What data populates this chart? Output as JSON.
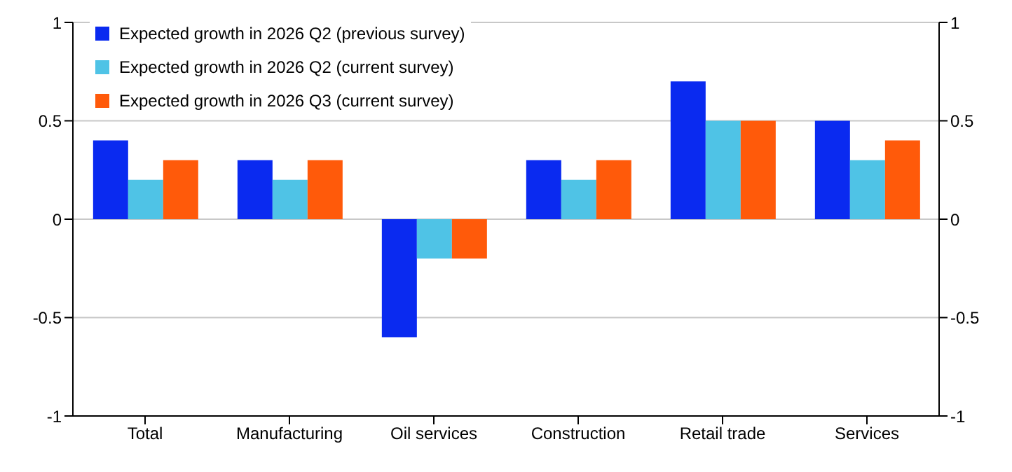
{
  "chart_data": {
    "type": "bar",
    "categories": [
      "Total",
      "Manufacturing",
      "Oil services",
      "Construction",
      "Retail trade",
      "Services"
    ],
    "series": [
      {
        "name": "Expected growth in 2026 Q2 (previous survey)",
        "color": "#0a2af0",
        "values": [
          0.4,
          0.3,
          -0.6,
          0.3,
          0.7,
          0.5
        ]
      },
      {
        "name": "Expected growth in 2026 Q2 (current survey)",
        "color": "#4fc3e6",
        "values": [
          0.2,
          0.2,
          -0.2,
          0.2,
          0.5,
          0.3
        ]
      },
      {
        "name": "Expected growth in 2026 Q3 (current survey)",
        "color": "#ff5a0a",
        "values": [
          0.3,
          0.3,
          -0.2,
          0.3,
          0.5,
          0.4
        ]
      }
    ],
    "ylim": [
      -1,
      1
    ],
    "yticks": [
      -1,
      -0.5,
      0,
      0.5,
      1
    ],
    "y2lim": [
      -1,
      1
    ],
    "y2ticks": [
      -1,
      -0.5,
      0,
      0.5,
      1
    ],
    "grid": "y",
    "legend": "top left"
  }
}
